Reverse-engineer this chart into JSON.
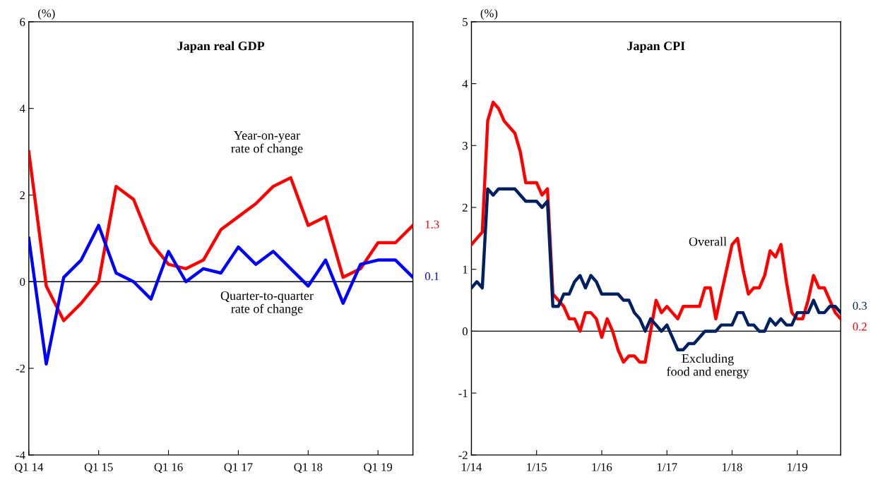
{
  "chart_data": [
    {
      "type": "line",
      "title": "Japan real GDP",
      "ylabel": "(%)",
      "categories": [
        "Q1 14",
        null,
        null,
        null,
        "Q1 15",
        null,
        null,
        null,
        "Q1 16",
        null,
        null,
        null,
        "Q1 17",
        null,
        null,
        null,
        "Q1 18",
        null,
        null,
        null,
        "Q1 19",
        null,
        null
      ],
      "series": [
        {
          "name": "Year-on-year\nrate of change",
          "color": "#ff0000",
          "values": [
            3.0,
            -0.1,
            -0.9,
            -0.5,
            0.0,
            2.2,
            1.9,
            0.9,
            0.4,
            0.3,
            0.5,
            1.2,
            1.5,
            1.8,
            2.2,
            2.4,
            1.3,
            1.5,
            0.1,
            0.3,
            0.9,
            0.9,
            1.3
          ],
          "value_labels": [
            null,
            null,
            null,
            null,
            null,
            null,
            null,
            null,
            null,
            null,
            null,
            null,
            null,
            null,
            null,
            null,
            null,
            null,
            null,
            null,
            null,
            null,
            "1.3"
          ]
        },
        {
          "name": "Quarter-to-quarter\nrate of change",
          "color": "#0000ff",
          "values": [
            1.0,
            -1.9,
            0.1,
            0.5,
            1.3,
            0.2,
            0.0,
            -0.4,
            0.7,
            0.0,
            0.3,
            0.2,
            0.8,
            0.4,
            0.7,
            0.3,
            -0.1,
            0.5,
            -0.5,
            0.4,
            0.5,
            0.5,
            0.1
          ],
          "value_labels": [
            null,
            null,
            null,
            null,
            null,
            null,
            null,
            null,
            null,
            null,
            null,
            null,
            null,
            null,
            null,
            null,
            null,
            null,
            null,
            null,
            null,
            null,
            "0.1"
          ]
        }
      ],
      "ylim": [
        -4,
        6
      ],
      "yticks": [
        -4,
        -2,
        0,
        2,
        4,
        6
      ],
      "ref_lines": [
        {
          "axis": "y",
          "value": 0,
          "color": "#000000"
        }
      ],
      "grid": false,
      "legend": false,
      "marker": "none",
      "line_style": "solid"
    },
    {
      "type": "line",
      "title": "Japan CPI",
      "ylabel": "(%)",
      "categories": [
        "1/14",
        null,
        null,
        null,
        null,
        null,
        null,
        null,
        null,
        null,
        null,
        null,
        "1/15",
        null,
        null,
        null,
        null,
        null,
        null,
        null,
        null,
        null,
        null,
        null,
        "1/16",
        null,
        null,
        null,
        null,
        null,
        null,
        null,
        null,
        null,
        null,
        null,
        "1/17",
        null,
        null,
        null,
        null,
        null,
        null,
        null,
        null,
        null,
        null,
        null,
        "1/18",
        null,
        null,
        null,
        null,
        null,
        null,
        null,
        null,
        null,
        null,
        null,
        "1/19",
        null,
        null,
        null,
        null,
        null,
        null,
        null,
        null
      ],
      "series": [
        {
          "name": "Overall",
          "color": "#ff0000",
          "values": [
            1.4,
            1.5,
            1.6,
            3.4,
            3.7,
            3.6,
            3.4,
            3.3,
            3.2,
            2.9,
            2.4,
            2.4,
            2.4,
            2.2,
            2.3,
            0.6,
            0.5,
            0.4,
            0.2,
            0.2,
            0.0,
            0.3,
            0.3,
            0.2,
            -0.1,
            0.2,
            0.0,
            -0.3,
            -0.5,
            -0.4,
            -0.4,
            -0.5,
            -0.5,
            0.0,
            0.5,
            0.3,
            0.4,
            0.3,
            0.2,
            0.4,
            0.4,
            0.4,
            0.4,
            0.7,
            0.7,
            0.2,
            0.6,
            1.0,
            1.4,
            1.5,
            1.0,
            0.6,
            0.7,
            0.7,
            0.9,
            1.3,
            1.2,
            1.4,
            0.8,
            0.3,
            0.2,
            0.2,
            0.5,
            0.9,
            0.7,
            0.7,
            0.5,
            0.3,
            0.2
          ],
          "value_labels": [
            null,
            null,
            null,
            null,
            null,
            null,
            null,
            null,
            null,
            null,
            null,
            null,
            null,
            null,
            null,
            null,
            null,
            null,
            null,
            null,
            null,
            null,
            null,
            null,
            null,
            null,
            null,
            null,
            null,
            null,
            null,
            null,
            null,
            null,
            null,
            null,
            null,
            null,
            null,
            null,
            null,
            null,
            null,
            null,
            null,
            null,
            null,
            null,
            null,
            null,
            null,
            null,
            null,
            null,
            null,
            null,
            null,
            null,
            null,
            null,
            null,
            null,
            null,
            null,
            null,
            null,
            null,
            null,
            "0.2"
          ]
        },
        {
          "name": "Excluding\nfood and energy",
          "color": "#002060",
          "values": [
            0.7,
            0.8,
            0.7,
            2.3,
            2.2,
            2.3,
            2.3,
            2.3,
            2.3,
            2.2,
            2.1,
            2.1,
            2.1,
            2.0,
            2.1,
            0.4,
            0.4,
            0.6,
            0.6,
            0.8,
            0.9,
            0.7,
            0.9,
            0.8,
            0.6,
            0.6,
            0.6,
            0.6,
            0.5,
            0.5,
            0.3,
            0.2,
            0.0,
            0.2,
            0.1,
            0.0,
            0.1,
            -0.1,
            -0.3,
            -0.3,
            -0.2,
            -0.2,
            -0.1,
            0.0,
            0.0,
            0.0,
            0.1,
            0.1,
            0.1,
            0.3,
            0.3,
            0.1,
            0.1,
            0.0,
            0.0,
            0.2,
            0.1,
            0.2,
            0.1,
            0.1,
            0.3,
            0.3,
            0.3,
            0.5,
            0.3,
            0.3,
            0.4,
            0.4,
            0.3
          ],
          "value_labels": [
            null,
            null,
            null,
            null,
            null,
            null,
            null,
            null,
            null,
            null,
            null,
            null,
            null,
            null,
            null,
            null,
            null,
            null,
            null,
            null,
            null,
            null,
            null,
            null,
            null,
            null,
            null,
            null,
            null,
            null,
            null,
            null,
            null,
            null,
            null,
            null,
            null,
            null,
            null,
            null,
            null,
            null,
            null,
            null,
            null,
            null,
            null,
            null,
            null,
            null,
            null,
            null,
            null,
            null,
            null,
            null,
            null,
            null,
            null,
            null,
            null,
            null,
            null,
            null,
            null,
            null,
            null,
            null,
            "0.3"
          ]
        }
      ],
      "ylim": [
        -2,
        5
      ],
      "yticks": [
        -2,
        -1,
        0,
        1,
        2,
        3,
        4,
        5
      ],
      "ref_lines": [
        {
          "axis": "y",
          "value": 0,
          "color": "#000000"
        }
      ],
      "grid": false,
      "legend": false,
      "marker": "none",
      "line_style": "solid"
    }
  ]
}
